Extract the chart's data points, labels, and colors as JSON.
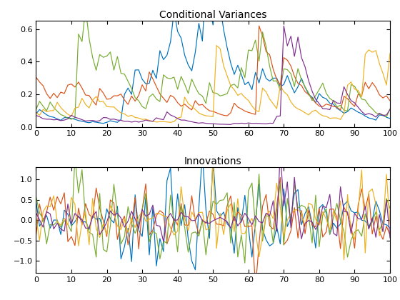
{
  "colors": [
    "#0072BD",
    "#D95319",
    "#77AC30",
    "#EDB120",
    "#7E2F8E"
  ],
  "title1": "Conditional Variances",
  "title2": "Innovations",
  "xlim": [
    0,
    100
  ],
  "ylim_var": [
    0,
    0.65
  ],
  "ylim_innov": [
    -1.3,
    1.3
  ],
  "yticks_var": [
    0,
    0.2,
    0.4,
    0.6
  ],
  "yticks_innov": [
    -1,
    -0.5,
    0,
    0.5,
    1
  ],
  "xticks": [
    0,
    10,
    20,
    30,
    40,
    50,
    60,
    70,
    80,
    90,
    100
  ],
  "linewidth": 0.85
}
